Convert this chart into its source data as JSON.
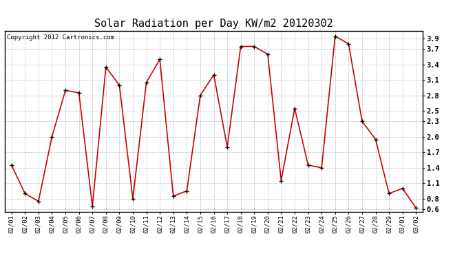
{
  "title": "Solar Radiation per Day KW/m2 20120302",
  "copyright_text": "Copyright 2012 Cartronics.com",
  "dates": [
    "02/01",
    "02/02",
    "02/03",
    "02/04",
    "02/05",
    "02/06",
    "02/07",
    "02/08",
    "02/09",
    "02/10",
    "02/11",
    "02/12",
    "02/13",
    "02/14",
    "02/15",
    "02/16",
    "02/17",
    "02/18",
    "02/19",
    "02/20",
    "02/21",
    "02/22",
    "02/23",
    "02/24",
    "02/25",
    "02/26",
    "02/27",
    "02/28",
    "02/29",
    "03/01",
    "03/02"
  ],
  "values": [
    1.45,
    0.9,
    0.75,
    2.0,
    2.9,
    2.85,
    0.65,
    3.35,
    3.0,
    0.8,
    3.05,
    3.5,
    0.85,
    0.95,
    2.8,
    3.2,
    1.8,
    3.75,
    3.75,
    3.6,
    1.15,
    2.55,
    1.45,
    1.4,
    3.95,
    3.8,
    2.3,
    1.95,
    0.9,
    1.0,
    0.62
  ],
  "line_color": "#cc0000",
  "marker_color": "#000000",
  "bg_color": "#ffffff",
  "grid_color": "#bbbbbb",
  "ylim": [
    0.55,
    4.05
  ],
  "yticks": [
    0.6,
    0.8,
    1.1,
    1.4,
    1.7,
    2.0,
    2.3,
    2.5,
    2.8,
    3.1,
    3.4,
    3.7,
    3.9
  ],
  "title_fontsize": 11,
  "copyright_fontsize": 6.5,
  "tick_fontsize": 6.5,
  "ytick_fontsize": 7.5
}
